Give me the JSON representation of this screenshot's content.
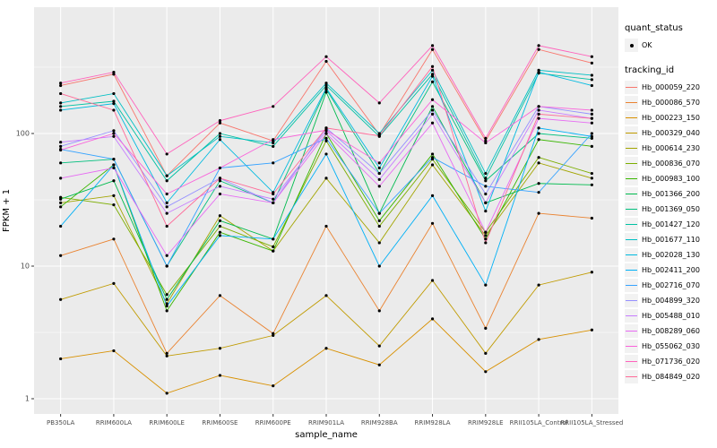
{
  "axes": {
    "x_title": "sample_name",
    "y_title": "FPKM + 1"
  },
  "legend": {
    "quant_status_title": "quant_status",
    "quant_status_label": "OK",
    "quant_status_symbol": "point",
    "tracking_id_title": "tracking_id"
  },
  "chart_data": {
    "type": "line",
    "title": "",
    "xlabel": "sample_name",
    "ylabel": "FPKM + 1",
    "y_scale": "log10",
    "y_ticks": [
      1,
      10,
      100
    ],
    "y_minor_ticks": [
      3.1623,
      31.623,
      316.23
    ],
    "ylim": [
      0.75,
      1000
    ],
    "grid": true,
    "legend_position": "right",
    "panel_bg": "#EBEBEB",
    "grid_color": "#FFFFFF",
    "point_color": "#000000",
    "categories": [
      "PB350LA",
      "RRIM600LA",
      "RRIM600LE",
      "RRIM600SE",
      "RRIM600PE",
      "RRIM901LA",
      "RRIM928BA",
      "RRIM928LA",
      "RRIM928LE",
      "RRII105LA_Control",
      "RRII105LA_Stressed"
    ],
    "series": [
      {
        "name": "Hb_000059_220",
        "color": "#F8766D",
        "values": [
          230,
          280,
          48,
          120,
          88,
          350,
          98,
          430,
          88,
          430,
          340
        ]
      },
      {
        "name": "Hb_000086_570",
        "color": "#EA8331",
        "values": [
          12,
          16,
          2.2,
          6,
          3.1,
          20,
          4.6,
          21,
          3.4,
          25,
          23
        ]
      },
      {
        "name": "Hb_000223_150",
        "color": "#D89000",
        "values": [
          2.0,
          2.3,
          1.1,
          1.5,
          1.25,
          2.4,
          1.8,
          4.0,
          1.6,
          2.8,
          3.3
        ]
      },
      {
        "name": "Hb_000329_040",
        "color": "#C09B00",
        "values": [
          5.6,
          7.4,
          2.1,
          2.4,
          3.0,
          6.0,
          2.5,
          7.8,
          2.2,
          7.2,
          9.0
        ]
      },
      {
        "name": "Hb_000614_230",
        "color": "#A3A500",
        "values": [
          30,
          34,
          5.2,
          24,
          13,
          46,
          15,
          58,
          17,
          60,
          46
        ]
      },
      {
        "name": "Hb_000836_070",
        "color": "#7CAE00",
        "values": [
          33,
          29,
          6.1,
          20,
          14,
          88,
          20,
          64,
          18,
          66,
          50
        ]
      },
      {
        "name": "Hb_000983_100",
        "color": "#39B600",
        "values": [
          28,
          58,
          4.6,
          18,
          13,
          100,
          22,
          70,
          16,
          90,
          80
        ]
      },
      {
        "name": "Hb_001366_200",
        "color": "#00BB4E",
        "values": [
          32,
          44,
          5.6,
          22,
          16,
          205,
          25,
          160,
          30,
          42,
          41
        ]
      },
      {
        "name": "Hb_001369_050",
        "color": "#00BF7D",
        "values": [
          60,
          64,
          10,
          44,
          30,
          215,
          50,
          245,
          44,
          100,
          92
        ]
      },
      {
        "name": "Hb_001427_120",
        "color": "#00C1A3",
        "values": [
          160,
          175,
          44,
          100,
          80,
          230,
          95,
          280,
          46,
          285,
          255
        ]
      },
      {
        "name": "Hb_001677_110",
        "color": "#00BFC4",
        "values": [
          170,
          200,
          48,
          95,
          85,
          240,
          100,
          300,
          50,
          300,
          275
        ]
      },
      {
        "name": "Hb_002028_130",
        "color": "#00BAE0",
        "values": [
          150,
          168,
          30,
          90,
          36,
          220,
          55,
          270,
          26,
          290,
          230
        ]
      },
      {
        "name": "Hb_002411_200",
        "color": "#00B0F6",
        "values": [
          20,
          58,
          5.0,
          17,
          16,
          70,
          10,
          34,
          7.2,
          110,
          95
        ]
      },
      {
        "name": "Hb_002716_070",
        "color": "#35A2FF",
        "values": [
          76,
          64,
          10,
          55,
          60,
          92,
          25,
          66,
          40,
          36,
          100
        ]
      },
      {
        "name": "Hb_004899_320",
        "color": "#9590FF",
        "values": [
          80,
          105,
          28,
          46,
          30,
          110,
          50,
          150,
          35,
          160,
          140
        ]
      },
      {
        "name": "Hb_005488_010",
        "color": "#C77CFF",
        "values": [
          86,
          95,
          25,
          40,
          32,
          105,
          45,
          140,
          30,
          150,
          130
        ]
      },
      {
        "name": "Hb_008289_060",
        "color": "#E76BF3",
        "values": [
          46,
          55,
          12,
          35,
          30,
          100,
          40,
          120,
          18,
          130,
          120
        ]
      },
      {
        "name": "Hb_055062_030",
        "color": "#FA62DB",
        "values": [
          75,
          100,
          35,
          55,
          90,
          106,
          60,
          180,
          85,
          160,
          150
        ]
      },
      {
        "name": "Hb_071736_020",
        "color": "#FF62BC",
        "values": [
          240,
          290,
          70,
          125,
          160,
          380,
          170,
          460,
          92,
          460,
          380
        ]
      },
      {
        "name": "Hb_084849_020",
        "color": "#FF6A98",
        "values": [
          200,
          150,
          20,
          46,
          35,
          110,
          96,
          320,
          15,
          140,
          130
        ]
      }
    ]
  }
}
